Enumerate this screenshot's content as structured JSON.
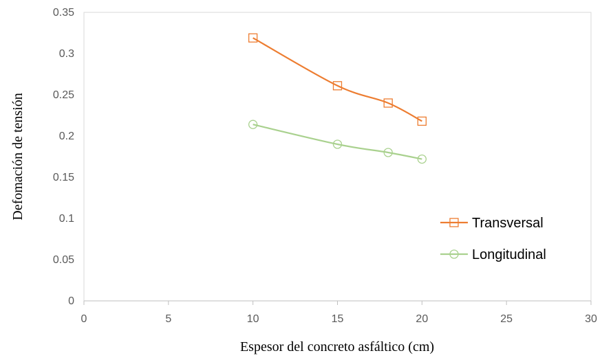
{
  "chart_data": {
    "type": "line",
    "xlabel": "Espesor del concreto asfáltico (cm)",
    "ylabel": "Defomación de tensión",
    "xlim": [
      0,
      30
    ],
    "ylim": [
      0,
      0.35
    ],
    "x_ticks": [
      0,
      5,
      10,
      15,
      20,
      25,
      30
    ],
    "y_ticks": [
      0,
      0.05,
      0.1,
      0.15,
      0.2,
      0.25,
      0.3,
      0.35
    ],
    "x_tick_labels": [
      "0",
      "5",
      "10",
      "15",
      "20",
      "25",
      "30"
    ],
    "y_tick_labels": [
      "0",
      "0.05",
      "0.1",
      "0.15",
      "0.2",
      "0.25",
      "0.3",
      "0.35"
    ],
    "grid": false,
    "legend_position": "right",
    "series": [
      {
        "name": "Transversal",
        "marker": "square",
        "color": "#ED7D31",
        "x": [
          10,
          15,
          18,
          20
        ],
        "y": [
          0.319,
          0.261,
          0.24,
          0.218
        ]
      },
      {
        "name": "Longitudinal",
        "marker": "circle",
        "color": "#A9D18E",
        "x": [
          10,
          15,
          18,
          20
        ],
        "y": [
          0.214,
          0.19,
          0.18,
          0.172
        ]
      }
    ]
  }
}
